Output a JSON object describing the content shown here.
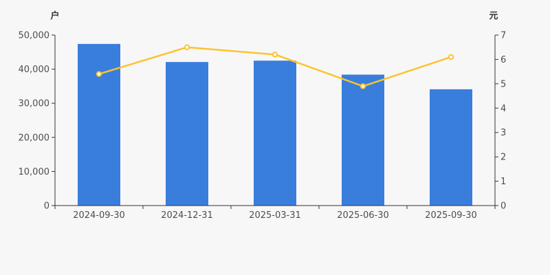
{
  "chart_data": {
    "type": "bar",
    "categories": [
      "2024-09-30",
      "2024-12-31",
      "2025-03-31",
      "2025-06-30",
      "2025-09-30"
    ],
    "series": [
      {
        "name": "bar-series",
        "type": "bar",
        "yaxis": "left",
        "values": [
          47400,
          42100,
          42500,
          38400,
          34100
        ]
      },
      {
        "name": "line-series",
        "type": "line",
        "yaxis": "right",
        "values": [
          5.4,
          6.5,
          6.2,
          4.9,
          6.1
        ]
      }
    ],
    "left_axis": {
      "label": "户",
      "min": 0,
      "max": 50000,
      "step": 10000,
      "tick_labels": [
        "0",
        "10,000",
        "20,000",
        "30,000",
        "40,000",
        "50,000"
      ]
    },
    "right_axis": {
      "label": "元",
      "min": 0,
      "max": 7,
      "step": 1,
      "tick_labels": [
        "0",
        "1",
        "2",
        "3",
        "4",
        "5",
        "6",
        "7"
      ]
    },
    "grid": false,
    "legend": null,
    "title": ""
  },
  "colors": {
    "background": "#f7f7f7",
    "bar": "#3a7edd",
    "line": "#fcc32c",
    "marker_fill": "#ffffff",
    "axis": "#333333",
    "tick_label": "#4d4d4d"
  }
}
